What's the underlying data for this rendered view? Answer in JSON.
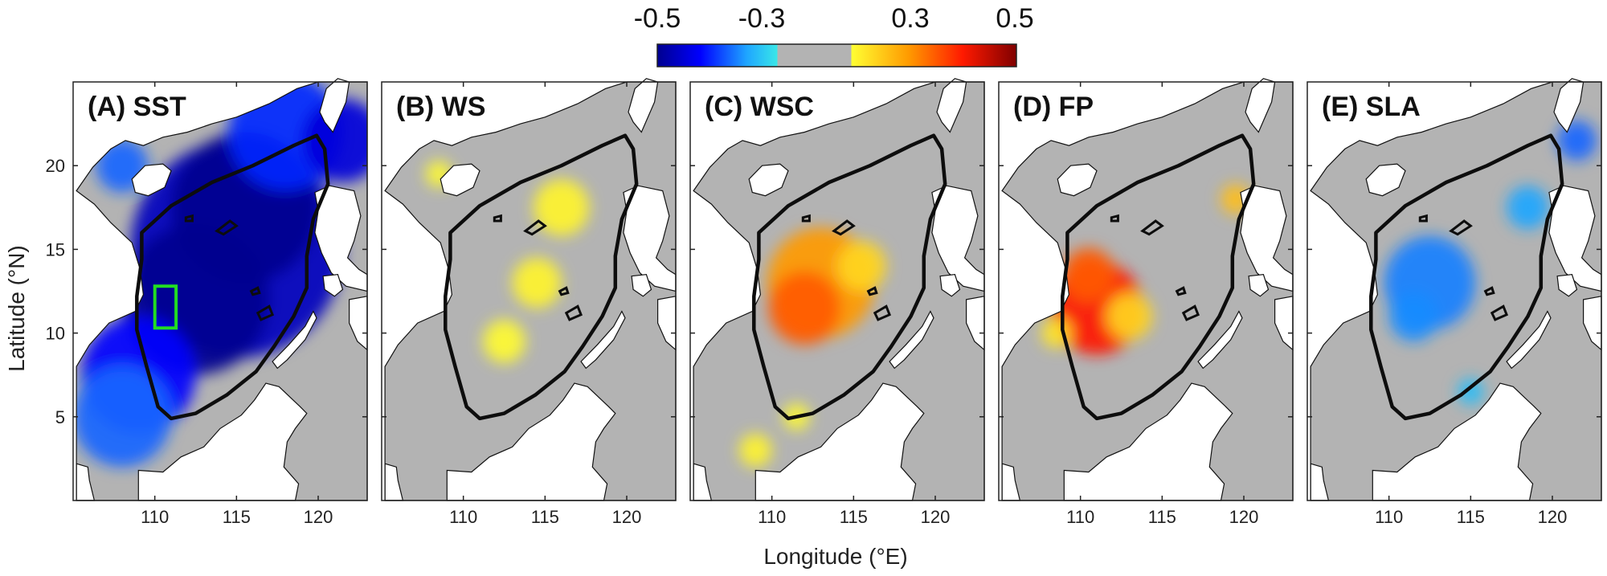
{
  "chart_data": {
    "type": "heatmap",
    "description_units": "correlation coefficient",
    "colorbar": {
      "min": -0.5,
      "max": 0.5,
      "tick_values": [
        -0.5,
        -0.3,
        0.3,
        0.5
      ],
      "tick_labels": [
        "-0.5",
        "-0.3",
        "0.3",
        "0.5"
      ],
      "masked_range": [
        -0.15,
        0.15
      ],
      "colors": {
        "deep_blue": "#00008f",
        "blue": "#0000ff",
        "light_blue": "#1fa6ff",
        "cyan": "#39e8e8",
        "masked_gray": "#b3b3b3",
        "yellow": "#ffff33",
        "orange": "#ff9a00",
        "red": "#ff1a00",
        "dark_red": "#800000"
      }
    },
    "xlabel": "Longitude (°E)",
    "ylabel": "Latitude (°N)",
    "xlim": [
      105,
      123
    ],
    "ylim": [
      0,
      25
    ],
    "x_ticks": [
      110,
      115,
      120
    ],
    "x_tick_labels": [
      "110",
      "115",
      "120"
    ],
    "y_ticks": [
      5,
      10,
      15,
      20
    ],
    "y_tick_labels": [
      "5",
      "10",
      "15",
      "20"
    ],
    "study_box": {
      "panel": "A",
      "lon": [
        110,
        111.3
      ],
      "lat": [
        10.3,
        12.8
      ],
      "color": "#22dd22"
    },
    "panels": [
      {
        "id": "A",
        "title": "(A) SST",
        "fields": [
          {
            "lon": 115.0,
            "lat": 15.0,
            "r": 6.5,
            "value": -0.45
          },
          {
            "lon": 112.5,
            "lat": 12.0,
            "r": 4.5,
            "value": -0.5
          },
          {
            "lon": 115.5,
            "lat": 17.5,
            "r": 4.5,
            "value": -0.5
          },
          {
            "lon": 109.0,
            "lat": 7.5,
            "r": 3.5,
            "value": -0.38
          },
          {
            "lon": 108.0,
            "lat": 5.0,
            "r": 3.0,
            "value": -0.3
          },
          {
            "lon": 118.0,
            "lat": 22.0,
            "r": 3.5,
            "value": -0.35
          },
          {
            "lon": 121.5,
            "lat": 21.5,
            "r": 2.5,
            "value": -0.42
          },
          {
            "lon": 108.0,
            "lat": 20.0,
            "r": 1.6,
            "value": -0.3
          }
        ]
      },
      {
        "id": "B",
        "title": "(B) WS",
        "fields": [
          {
            "lon": 116.0,
            "lat": 17.5,
            "r": 1.7,
            "value": 0.18
          },
          {
            "lon": 114.5,
            "lat": 13.0,
            "r": 1.5,
            "value": 0.18
          },
          {
            "lon": 112.5,
            "lat": 9.5,
            "r": 1.3,
            "value": 0.17
          },
          {
            "lon": 108.5,
            "lat": 19.5,
            "r": 0.8,
            "value": 0.17
          }
        ]
      },
      {
        "id": "C",
        "title": "(C) WSC",
        "fields": [
          {
            "lon": 113.0,
            "lat": 13.0,
            "r": 3.3,
            "value": 0.3
          },
          {
            "lon": 112.0,
            "lat": 11.5,
            "r": 2.2,
            "value": 0.35
          },
          {
            "lon": 115.5,
            "lat": 14.0,
            "r": 1.5,
            "value": 0.22
          },
          {
            "lon": 109.0,
            "lat": 3.0,
            "r": 1.0,
            "value": 0.18
          },
          {
            "lon": 111.5,
            "lat": 5.0,
            "r": 0.8,
            "value": 0.17
          }
        ]
      },
      {
        "id": "D",
        "title": "(D) FP",
        "fields": [
          {
            "lon": 111.0,
            "lat": 11.5,
            "r": 2.8,
            "value": 0.4
          },
          {
            "lon": 110.5,
            "lat": 13.5,
            "r": 1.6,
            "value": 0.35
          },
          {
            "lon": 113.0,
            "lat": 11.0,
            "r": 1.4,
            "value": 0.22
          },
          {
            "lon": 119.5,
            "lat": 18.0,
            "r": 0.9,
            "value": 0.25
          },
          {
            "lon": 108.5,
            "lat": 10.0,
            "r": 0.9,
            "value": 0.2
          }
        ]
      },
      {
        "id": "E",
        "title": "(E) SLA",
        "fields": [
          {
            "lon": 112.5,
            "lat": 13.0,
            "r": 2.8,
            "value": -0.28
          },
          {
            "lon": 111.5,
            "lat": 11.0,
            "r": 1.5,
            "value": -0.27
          },
          {
            "lon": 118.5,
            "lat": 17.5,
            "r": 1.3,
            "value": -0.25
          },
          {
            "lon": 121.5,
            "lat": 21.5,
            "r": 1.2,
            "value": -0.3
          },
          {
            "lon": 115.0,
            "lat": 6.5,
            "r": 0.8,
            "value": -0.22
          }
        ]
      }
    ]
  }
}
